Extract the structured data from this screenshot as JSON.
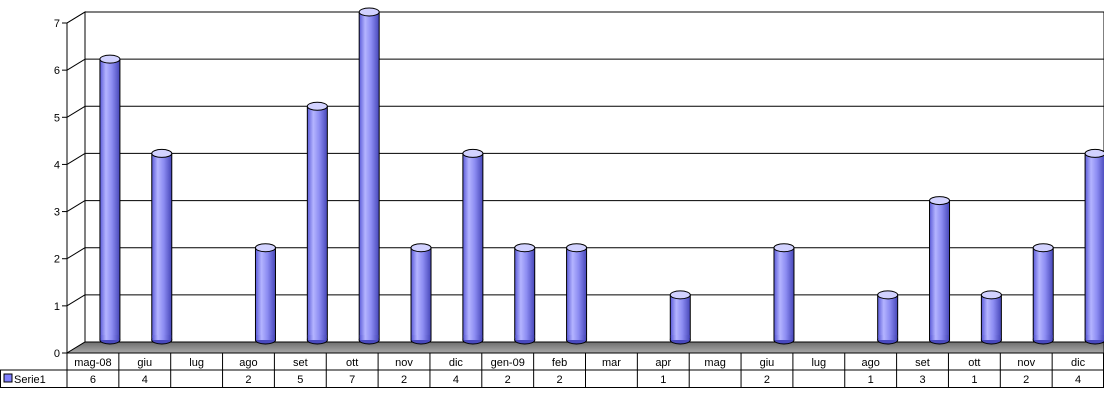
{
  "chart_data": {
    "type": "bar",
    "title": "",
    "xlabel": "",
    "ylabel": "",
    "ylim": [
      0,
      7
    ],
    "yticks": [
      "0",
      "1",
      "2",
      "3",
      "4",
      "5",
      "6",
      "7"
    ],
    "grid": true,
    "legend_placement": "left of data table",
    "categories": [
      "mag-08",
      "giu",
      "lug",
      "ago",
      "set",
      "ott",
      "nov",
      "dic",
      "gen-09",
      "feb",
      "mar",
      "apr",
      "mag",
      "giu",
      "lug",
      "ago",
      "set",
      "ott",
      "nov",
      "dic"
    ],
    "series": [
      {
        "name": "Serie1",
        "color": "#8080ff",
        "values": [
          6,
          4,
          null,
          2,
          5,
          7,
          2,
          4,
          2,
          2,
          null,
          1,
          null,
          2,
          null,
          1,
          3,
          1,
          2,
          4
        ],
        "labels": [
          "6",
          "4",
          "",
          "2",
          "5",
          "7",
          "2",
          "4",
          "2",
          "2",
          "",
          "1",
          "",
          "2",
          "",
          "1",
          "3",
          "1",
          "2",
          "4"
        ]
      }
    ]
  }
}
